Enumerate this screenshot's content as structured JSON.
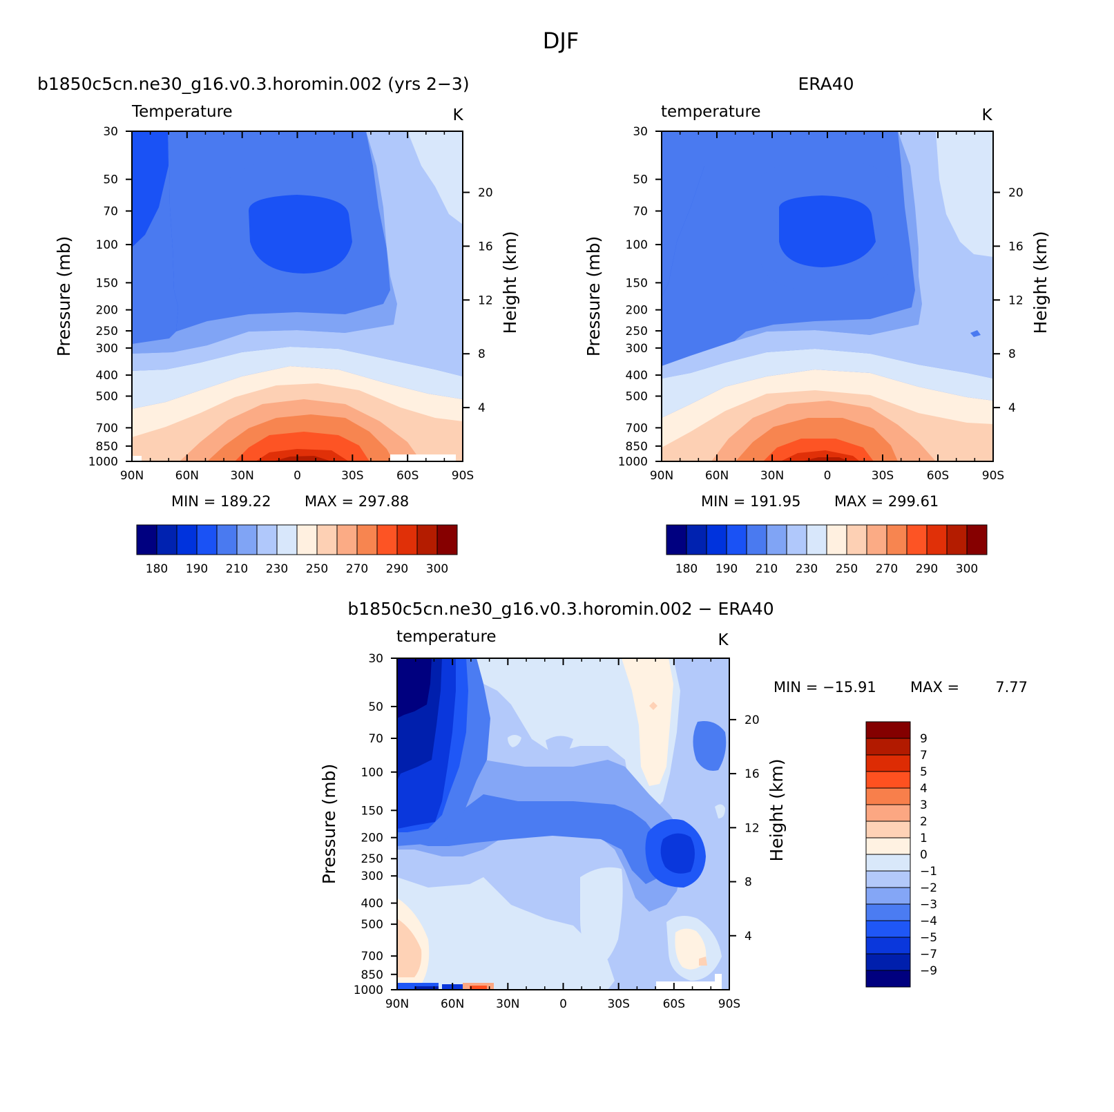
{
  "figure_title": "DJF",
  "colors": {
    "abs_scale": [
      "#000080",
      "#0022b0",
      "#0033dd",
      "#1a52f5",
      "#4a7af0",
      "#80a4f5",
      "#b0c8fb",
      "#d8e7fb",
      "#fff0e0",
      "#fdd0b4",
      "#fbab85",
      "#f78550",
      "#fd5424",
      "#e03008",
      "#b41c00",
      "#860000"
    ],
    "diff_scale": [
      "#00007f",
      "#001fad",
      "#0a37dc",
      "#1f57f6",
      "#4b7cf2",
      "#84a6f6",
      "#b3c9fa",
      "#d9e8fa",
      "#fff2e2",
      "#fed2b6",
      "#fca782",
      "#f87f4b",
      "#fe5120",
      "#dd2c04",
      "#b21a00",
      "#840000"
    ]
  },
  "chart_data": [
    {
      "type": "heatmap",
      "title": "b1850c5cn.ne30_g16.v0.3.horomin.002 (yrs 2−3)",
      "subtitle_left": "Temperature",
      "subtitle_right": "K",
      "xlabel": "",
      "ylabel": "Pressure (mb)",
      "ylabel_right": "Height (km)",
      "x_ticks": [
        "90N",
        "60N",
        "30N",
        "0",
        "30S",
        "60S",
        "90S"
      ],
      "x_tick_values": [
        90,
        60,
        30,
        0,
        -30,
        -60,
        -90
      ],
      "y_ticks": [
        30,
        50,
        70,
        100,
        150,
        200,
        250,
        300,
        400,
        500,
        700,
        850,
        1000
      ],
      "y_right_ticks": [
        20,
        16,
        12,
        8,
        4
      ],
      "y_scale": "log",
      "xlim": [
        90,
        -90
      ],
      "ylim": [
        1000,
        30
      ],
      "min_label": "MIN = 189.22",
      "max_label": "MAX = 297.88",
      "min": 189.22,
      "max": 297.88,
      "colorbar_labels": [
        "180",
        "190",
        "210",
        "230",
        "250",
        "270",
        "290",
        "300"
      ],
      "colorbar_orientation": "horizontal"
    },
    {
      "type": "heatmap",
      "title": "ERA40",
      "subtitle_left": "temperature",
      "subtitle_right": "K",
      "xlabel": "",
      "ylabel": "Pressure (mb)",
      "ylabel_right": "Height (km)",
      "x_ticks": [
        "90N",
        "60N",
        "30N",
        "0",
        "30S",
        "60S",
        "90S"
      ],
      "x_tick_values": [
        90,
        60,
        30,
        0,
        -30,
        -60,
        -90
      ],
      "y_ticks": [
        30,
        50,
        70,
        100,
        150,
        200,
        250,
        300,
        400,
        500,
        700,
        850,
        1000
      ],
      "y_right_ticks": [
        20,
        16,
        12,
        8,
        4
      ],
      "y_scale": "log",
      "xlim": [
        90,
        -90
      ],
      "ylim": [
        1000,
        30
      ],
      "min_label": "MIN = 191.95",
      "max_label": "MAX = 299.61",
      "min": 191.95,
      "max": 299.61,
      "colorbar_labels": [
        "180",
        "190",
        "210",
        "230",
        "250",
        "270",
        "290",
        "300"
      ],
      "colorbar_orientation": "horizontal"
    },
    {
      "type": "heatmap",
      "title": "b1850c5cn.ne30_g16.v0.3.horomin.002 − ERA40",
      "subtitle_left": "temperature",
      "subtitle_right": "K",
      "xlabel": "",
      "ylabel": "Pressure (mb)",
      "ylabel_right": "Height (km)",
      "x_ticks": [
        "90N",
        "60N",
        "30N",
        "0",
        "30S",
        "60S",
        "90S"
      ],
      "x_tick_values": [
        90,
        60,
        30,
        0,
        -30,
        -60,
        -90
      ],
      "y_ticks": [
        30,
        50,
        70,
        100,
        150,
        200,
        250,
        300,
        400,
        500,
        700,
        850,
        1000
      ],
      "y_right_ticks": [
        20,
        16,
        12,
        8,
        4
      ],
      "y_scale": "log",
      "xlim": [
        90,
        -90
      ],
      "ylim": [
        1000,
        30
      ],
      "min_label": "MIN = −15.91",
      "max_label": "MAX =",
      "max_value_label": "7.77",
      "min": -15.91,
      "max": 7.77,
      "colorbar_labels": [
        "9",
        "7",
        "5",
        "4",
        "3",
        "2",
        "1",
        "0",
        "−1",
        "−2",
        "−3",
        "−4",
        "−5",
        "−7",
        "−9"
      ],
      "colorbar_orientation": "vertical"
    }
  ]
}
